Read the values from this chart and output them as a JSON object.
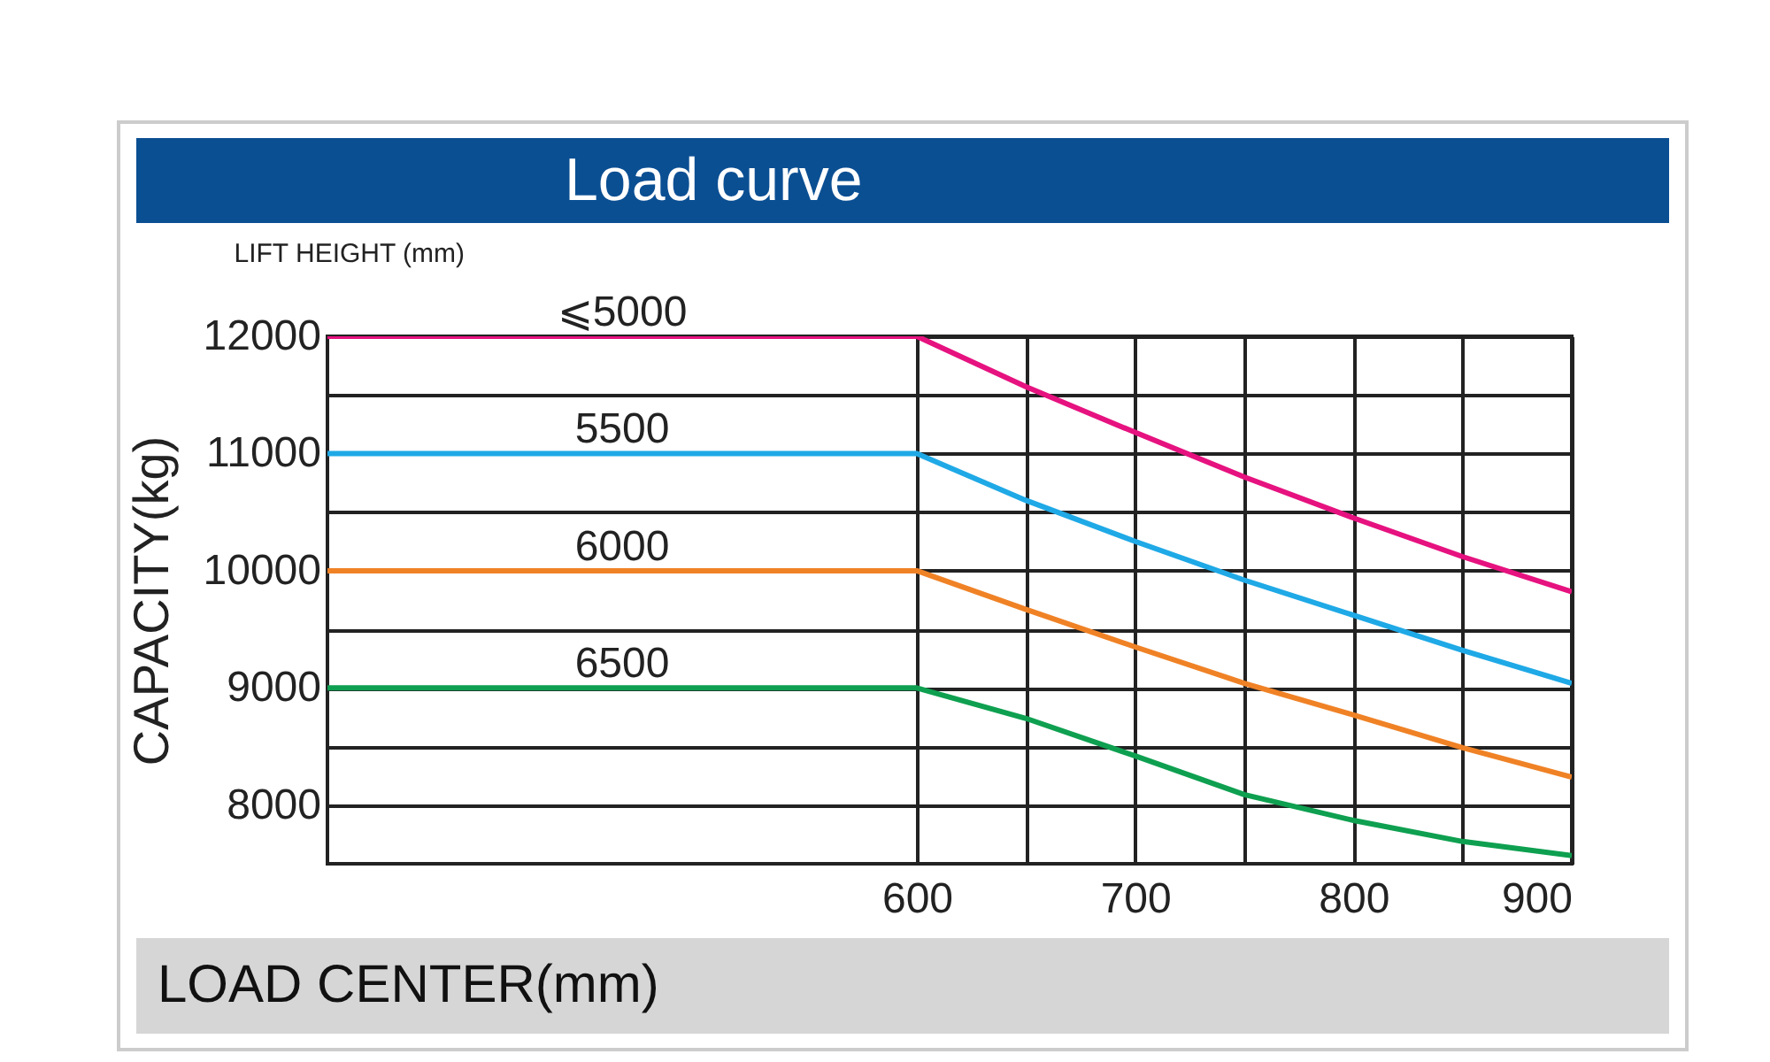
{
  "chart_data": {
    "type": "line",
    "title": "Load curve",
    "xlabel": "LOAD CENTER(mm)",
    "ylabel": "CAPACITY(kg)",
    "legend_title": "LIFT HEIGHT  (mm)",
    "xlim": [
      330,
      900
    ],
    "xticks": [
      600,
      {
        "value": 650,
        "label": null
      },
      700,
      {
        "value": 750,
        "label": null
      },
      800,
      {
        "value": 850,
        "label": null
      },
      900
    ],
    "ylim": [
      7500,
      12000
    ],
    "yticks": [
      8000,
      {
        "value": 8500,
        "label": null
      },
      9000,
      {
        "value": 9500,
        "label": null
      },
      10000,
      {
        "value": 10500,
        "label": null
      },
      11000,
      {
        "value": 11500,
        "label": null
      },
      12000
    ],
    "grid": true,
    "legend": false,
    "line_style": "solid",
    "x": [
      330,
      600,
      650,
      700,
      750,
      800,
      850,
      900
    ],
    "series": [
      {
        "name": "⩽5000",
        "color": "#e6127f",
        "values": [
          12000,
          12000,
          11570,
          11180,
          10800,
          10450,
          10120,
          9820
        ]
      },
      {
        "name": "5500",
        "color": "#1fa9e6",
        "values": [
          11000,
          11000,
          10600,
          10250,
          9920,
          9620,
          9320,
          9040
        ]
      },
      {
        "name": "6000",
        "color": "#f08226",
        "values": [
          10000,
          10000,
          9670,
          9350,
          9040,
          8770,
          8490,
          8240
        ]
      },
      {
        "name": "6500",
        "color": "#0ea050",
        "values": [
          9000,
          9000,
          8740,
          8420,
          8090,
          7870,
          7690,
          7570
        ]
      }
    ]
  }
}
